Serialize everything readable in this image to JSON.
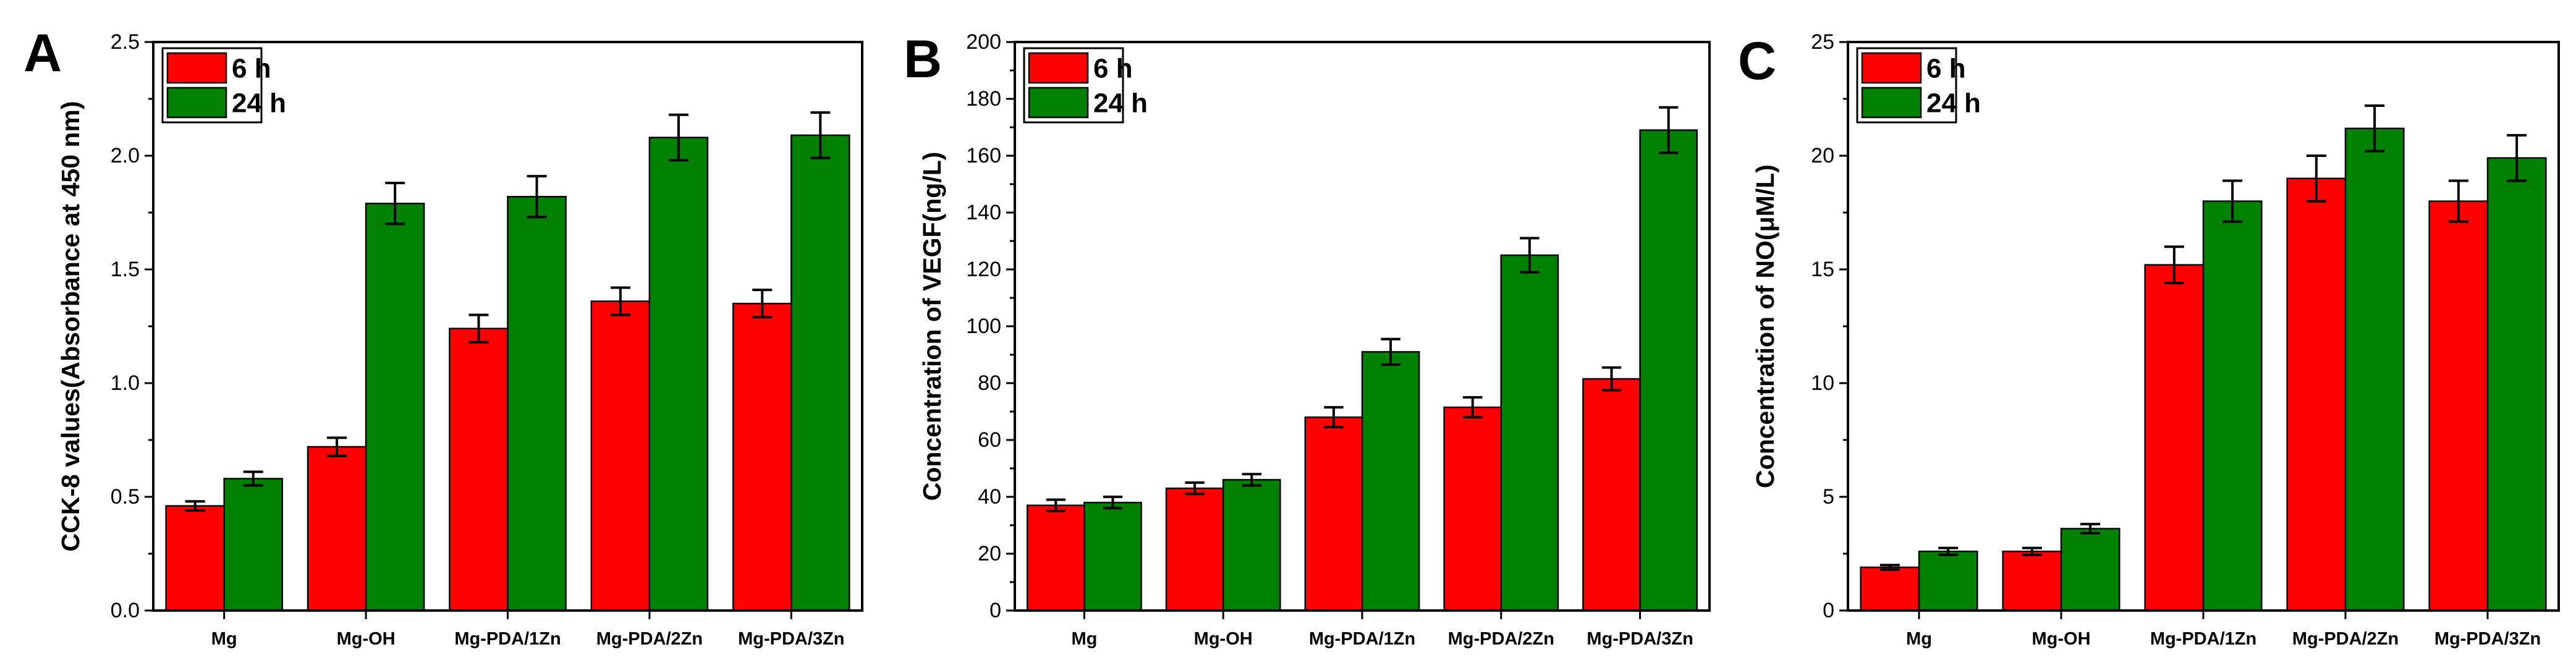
{
  "colors": {
    "series_6h": "#ff0000",
    "series_24h": "#008000"
  },
  "chart_data": [
    {
      "type": "bar",
      "panel": "A",
      "ylabel": "CCK-8 values(Absorbance at 450 nm)",
      "xlabel": "",
      "ylim": [
        0,
        2.5
      ],
      "yticks": [
        "0.0",
        "0.5",
        "1.0",
        "1.5",
        "2.0",
        "2.5"
      ],
      "categories": [
        "Mg",
        "Mg-OH",
        "Mg-PDA/1Zn",
        "Mg-PDA/2Zn",
        "Mg-PDA/3Zn"
      ],
      "legend_position": "top-left",
      "series": [
        {
          "name": "6 h",
          "values": [
            0.46,
            0.72,
            1.24,
            1.36,
            1.35
          ],
          "errors": [
            0.02,
            0.04,
            0.06,
            0.06,
            0.06
          ]
        },
        {
          "name": "24 h",
          "values": [
            0.58,
            1.79,
            1.82,
            2.08,
            2.09
          ],
          "errors": [
            0.03,
            0.09,
            0.09,
            0.1,
            0.1
          ]
        }
      ]
    },
    {
      "type": "bar",
      "panel": "B",
      "ylabel": "Concentration of VEGF(ng/L)",
      "xlabel": "",
      "ylim": [
        0,
        200
      ],
      "yticks": [
        "0",
        "20",
        "40",
        "60",
        "80",
        "100",
        "120",
        "140",
        "160",
        "180",
        "200"
      ],
      "categories": [
        "Mg",
        "Mg-OH",
        "Mg-PDA/1Zn",
        "Mg-PDA/2Zn",
        "Mg-PDA/3Zn"
      ],
      "legend_position": "top-left",
      "series": [
        {
          "name": "6 h",
          "values": [
            37,
            43,
            68,
            71.5,
            81.5
          ],
          "errors": [
            2,
            2,
            3.5,
            3.5,
            4
          ]
        },
        {
          "name": "24 h",
          "values": [
            38,
            46,
            91,
            125,
            169
          ],
          "errors": [
            2,
            2,
            4.5,
            6,
            8
          ]
        }
      ]
    },
    {
      "type": "bar",
      "panel": "C",
      "ylabel": "Concentration of NO(μM/L)",
      "xlabel": "",
      "ylim": [
        0,
        25
      ],
      "yticks": [
        "0",
        "5",
        "10",
        "15",
        "20",
        "25"
      ],
      "categories": [
        "Mg",
        "Mg-OH",
        "Mg-PDA/1Zn",
        "Mg-PDA/2Zn",
        "Mg-PDA/3Zn"
      ],
      "legend_position": "top-left",
      "series": [
        {
          "name": "6 h",
          "values": [
            1.9,
            2.6,
            15.2,
            19.0,
            18.0
          ],
          "errors": [
            0.1,
            0.15,
            0.8,
            1.0,
            0.9
          ]
        },
        {
          "name": "24 h",
          "values": [
            2.6,
            3.6,
            18.0,
            21.2,
            19.9
          ],
          "errors": [
            0.15,
            0.2,
            0.9,
            1.0,
            1.0
          ]
        }
      ]
    }
  ]
}
